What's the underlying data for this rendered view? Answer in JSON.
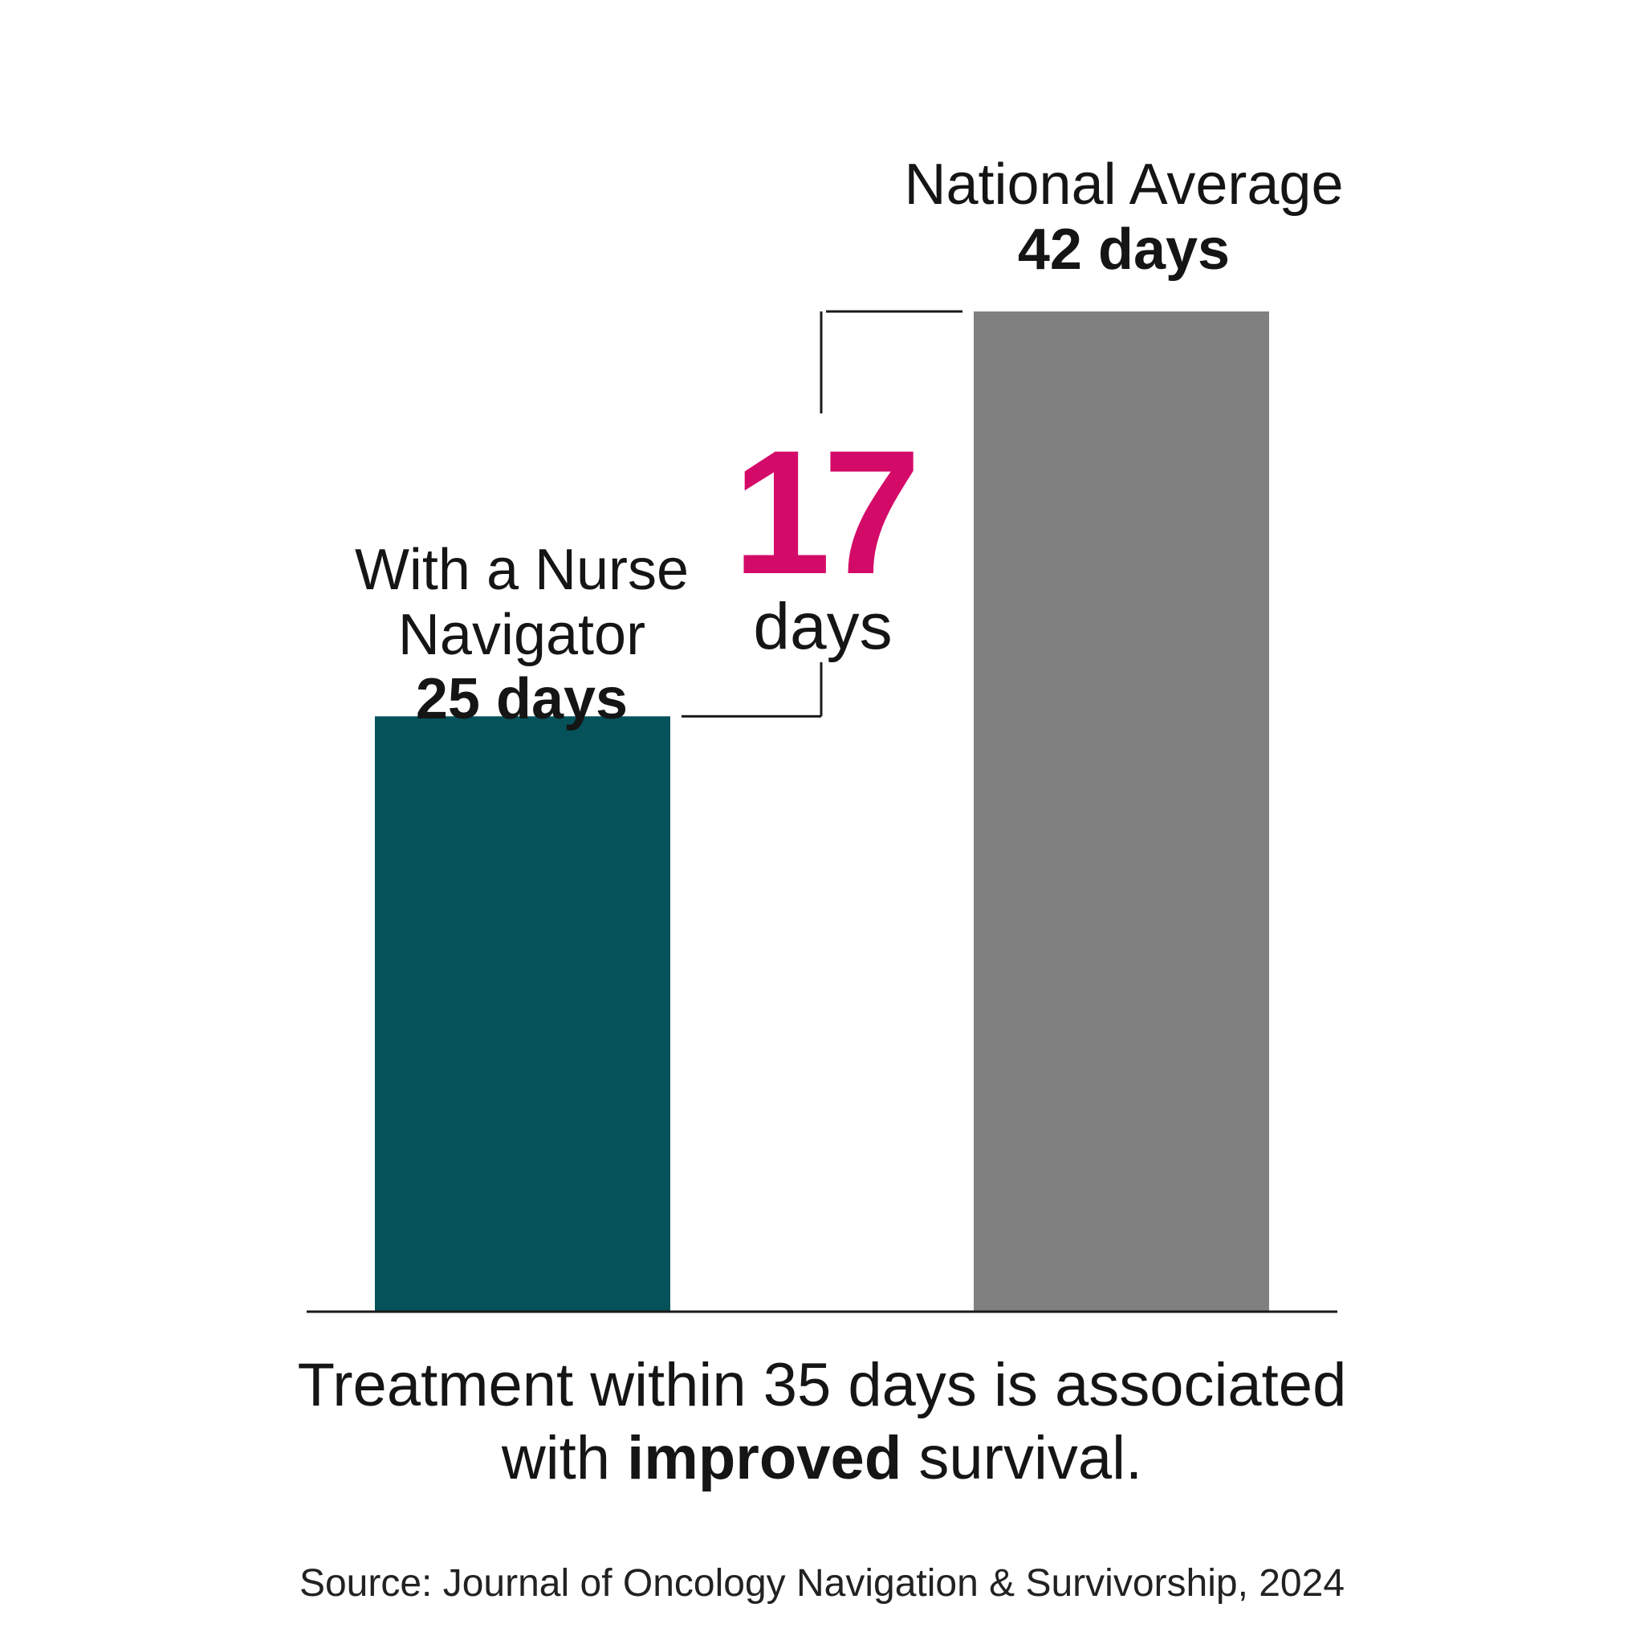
{
  "chart_data": {
    "type": "bar",
    "categories": [
      "With a Nurse Navigator",
      "National Average"
    ],
    "values": [
      25,
      42
    ],
    "value_labels": [
      "25 days",
      "42 days"
    ],
    "category_lines": [
      [
        "With a Nurse",
        "Navigator"
      ],
      [
        "National Average"
      ]
    ],
    "colors": [
      "#05525a",
      "#808080"
    ],
    "difference": {
      "value": "17",
      "unit": "days",
      "color": "#d40a68"
    },
    "xlabel": "",
    "ylabel": "",
    "ylim": [
      0,
      42
    ],
    "grid": false,
    "legend": "none"
  },
  "caption": {
    "line1": "Treatment within 35 days is associated",
    "line2_before": "with ",
    "line2_bold": "improved",
    "line2_after": " survival."
  },
  "source": "Source: Journal of Oncology Navigation & Survivorship, 2024"
}
